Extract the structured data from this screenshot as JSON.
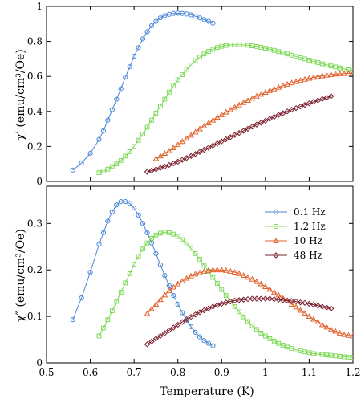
{
  "chart_data": [
    {
      "type": "line",
      "panel": "top",
      "ylabel": "χ′ (emu/cm³/Oe)",
      "xlim": [
        0.5,
        1.2
      ],
      "ylim": [
        0,
        1
      ],
      "xticks": [
        "0.5",
        "0.6",
        "0.7",
        "0.8",
        "0.9",
        "1",
        "1.1",
        "1.2"
      ],
      "yticks": [
        "0",
        "0.2",
        "0.4",
        "0.6",
        "0.8",
        "1"
      ],
      "series": [
        {
          "name": "0.1 Hz",
          "color": "#4a86d6",
          "marker": "circle",
          "x": [
            0.56,
            0.58,
            0.6,
            0.62,
            0.63,
            0.64,
            0.65,
            0.66,
            0.67,
            0.68,
            0.69,
            0.7,
            0.71,
            0.72,
            0.73,
            0.74,
            0.75,
            0.76,
            0.77,
            0.78,
            0.79,
            0.8,
            0.81,
            0.82,
            0.83,
            0.84,
            0.85,
            0.86,
            0.87,
            0.88
          ],
          "y": [
            0.065,
            0.105,
            0.16,
            0.24,
            0.29,
            0.35,
            0.41,
            0.47,
            0.53,
            0.595,
            0.655,
            0.715,
            0.765,
            0.815,
            0.855,
            0.89,
            0.915,
            0.935,
            0.948,
            0.955,
            0.96,
            0.962,
            0.96,
            0.957,
            0.952,
            0.944,
            0.935,
            0.925,
            0.915,
            0.905
          ]
        },
        {
          "name": "1.2 Hz",
          "color": "#7ed957",
          "marker": "square",
          "x": [
            0.62,
            0.63,
            0.64,
            0.65,
            0.66,
            0.67,
            0.68,
            0.69,
            0.7,
            0.71,
            0.72,
            0.73,
            0.74,
            0.75,
            0.76,
            0.77,
            0.78,
            0.79,
            0.8,
            0.81,
            0.82,
            0.83,
            0.84,
            0.85,
            0.86,
            0.87,
            0.88,
            0.89,
            0.9,
            0.91,
            0.92,
            0.93,
            0.94,
            0.95,
            0.96,
            0.97,
            0.98,
            0.99,
            1.0,
            1.01,
            1.02,
            1.03,
            1.04,
            1.05,
            1.06,
            1.07,
            1.08,
            1.09,
            1.1,
            1.11,
            1.12,
            1.13,
            1.14,
            1.15,
            1.16,
            1.17,
            1.18,
            1.19,
            1.2
          ],
          "y": [
            0.05,
            0.06,
            0.07,
            0.085,
            0.1,
            0.12,
            0.145,
            0.17,
            0.2,
            0.235,
            0.27,
            0.31,
            0.35,
            0.39,
            0.43,
            0.47,
            0.51,
            0.545,
            0.58,
            0.61,
            0.64,
            0.665,
            0.69,
            0.71,
            0.728,
            0.743,
            0.755,
            0.765,
            0.772,
            0.777,
            0.78,
            0.781,
            0.781,
            0.78,
            0.778,
            0.775,
            0.771,
            0.766,
            0.761,
            0.755,
            0.749,
            0.742,
            0.735,
            0.728,
            0.721,
            0.714,
            0.707,
            0.7,
            0.693,
            0.686,
            0.679,
            0.672,
            0.666,
            0.66,
            0.654,
            0.648,
            0.643,
            0.638,
            0.633
          ]
        },
        {
          "name": "10 Hz",
          "color": "#e0622b",
          "marker": "triangle",
          "x": [
            0.75,
            0.76,
            0.77,
            0.78,
            0.79,
            0.8,
            0.81,
            0.82,
            0.83,
            0.84,
            0.85,
            0.86,
            0.87,
            0.88,
            0.89,
            0.9,
            0.91,
            0.92,
            0.93,
            0.94,
            0.95,
            0.96,
            0.97,
            0.98,
            0.99,
            1.0,
            1.01,
            1.02,
            1.03,
            1.04,
            1.05,
            1.06,
            1.07,
            1.08,
            1.09,
            1.1,
            1.11,
            1.12,
            1.13,
            1.14,
            1.15,
            1.16,
            1.17,
            1.18,
            1.19,
            1.2
          ],
          "y": [
            0.13,
            0.145,
            0.16,
            0.175,
            0.192,
            0.21,
            0.228,
            0.246,
            0.264,
            0.282,
            0.3,
            0.317,
            0.334,
            0.35,
            0.366,
            0.381,
            0.396,
            0.41,
            0.424,
            0.437,
            0.45,
            0.463,
            0.475,
            0.487,
            0.498,
            0.509,
            0.519,
            0.529,
            0.538,
            0.547,
            0.555,
            0.563,
            0.57,
            0.577,
            0.583,
            0.589,
            0.594,
            0.599,
            0.603,
            0.607,
            0.61,
            0.613,
            0.615,
            0.616,
            0.617,
            0.617
          ]
        },
        {
          "name": "48 Hz",
          "color": "#7b1f2e",
          "marker": "diamond",
          "x": [
            0.73,
            0.74,
            0.75,
            0.76,
            0.77,
            0.78,
            0.79,
            0.8,
            0.81,
            0.82,
            0.83,
            0.84,
            0.85,
            0.86,
            0.87,
            0.88,
            0.89,
            0.9,
            0.91,
            0.92,
            0.93,
            0.94,
            0.95,
            0.96,
            0.97,
            0.98,
            0.99,
            1.0,
            1.01,
            1.02,
            1.03,
            1.04,
            1.05,
            1.06,
            1.07,
            1.08,
            1.09,
            1.1,
            1.11,
            1.12,
            1.13,
            1.14,
            1.15
          ],
          "y": [
            0.055,
            0.062,
            0.069,
            0.077,
            0.085,
            0.094,
            0.103,
            0.113,
            0.123,
            0.134,
            0.145,
            0.157,
            0.169,
            0.181,
            0.193,
            0.205,
            0.217,
            0.229,
            0.241,
            0.253,
            0.265,
            0.277,
            0.289,
            0.301,
            0.313,
            0.325,
            0.336,
            0.347,
            0.358,
            0.369,
            0.38,
            0.39,
            0.4,
            0.41,
            0.419,
            0.428,
            0.437,
            0.446,
            0.455,
            0.463,
            0.471,
            0.479,
            0.487
          ]
        }
      ]
    },
    {
      "type": "line",
      "panel": "bottom",
      "ylabel": "χ″ (emu/cm³/Oe)",
      "xlabel": "Temperature (K)",
      "xlim": [
        0.5,
        1.2
      ],
      "ylim": [
        0,
        0.38
      ],
      "xticks": [
        "0.5",
        "0.6",
        "0.7",
        "0.8",
        "0.9",
        "1",
        "1.1",
        "1.2"
      ],
      "yticks": [
        "0",
        "0.1",
        "0.2",
        "0.3"
      ],
      "legend": "top-right",
      "series": [
        {
          "name": "0.1 Hz",
          "color": "#4a86d6",
          "marker": "circle",
          "x": [
            0.56,
            0.58,
            0.6,
            0.62,
            0.63,
            0.64,
            0.65,
            0.66,
            0.67,
            0.68,
            0.69,
            0.7,
            0.71,
            0.72,
            0.73,
            0.74,
            0.75,
            0.76,
            0.77,
            0.78,
            0.79,
            0.8,
            0.81,
            0.82,
            0.83,
            0.84,
            0.85,
            0.86,
            0.87,
            0.88
          ],
          "y": [
            0.093,
            0.14,
            0.195,
            0.255,
            0.28,
            0.305,
            0.325,
            0.34,
            0.347,
            0.347,
            0.343,
            0.333,
            0.318,
            0.3,
            0.28,
            0.258,
            0.235,
            0.211,
            0.188,
            0.166,
            0.145,
            0.126,
            0.108,
            0.092,
            0.078,
            0.066,
            0.056,
            0.048,
            0.042,
            0.037
          ]
        },
        {
          "name": "1.2 Hz",
          "color": "#7ed957",
          "marker": "square",
          "x": [
            0.62,
            0.63,
            0.64,
            0.65,
            0.66,
            0.67,
            0.68,
            0.69,
            0.7,
            0.71,
            0.72,
            0.73,
            0.74,
            0.75,
            0.76,
            0.77,
            0.78,
            0.79,
            0.8,
            0.81,
            0.82,
            0.83,
            0.84,
            0.85,
            0.86,
            0.87,
            0.88,
            0.89,
            0.9,
            0.91,
            0.92,
            0.93,
            0.94,
            0.95,
            0.96,
            0.97,
            0.98,
            0.99,
            1.0,
            1.01,
            1.02,
            1.03,
            1.04,
            1.05,
            1.06,
            1.07,
            1.08,
            1.09,
            1.1,
            1.11,
            1.12,
            1.13,
            1.14,
            1.15,
            1.16,
            1.17,
            1.18,
            1.19,
            1.2
          ],
          "y": [
            0.058,
            0.075,
            0.093,
            0.112,
            0.132,
            0.152,
            0.172,
            0.192,
            0.212,
            0.23,
            0.245,
            0.258,
            0.268,
            0.275,
            0.279,
            0.281,
            0.28,
            0.277,
            0.272,
            0.265,
            0.256,
            0.246,
            0.235,
            0.223,
            0.21,
            0.197,
            0.184,
            0.171,
            0.158,
            0.145,
            0.133,
            0.121,
            0.11,
            0.099,
            0.089,
            0.08,
            0.072,
            0.064,
            0.058,
            0.052,
            0.047,
            0.042,
            0.038,
            0.034,
            0.031,
            0.028,
            0.026,
            0.024,
            0.022,
            0.02,
            0.019,
            0.018,
            0.017,
            0.016,
            0.015,
            0.014,
            0.013,
            0.012,
            0.012
          ]
        },
        {
          "name": "10 Hz",
          "color": "#e0622b",
          "marker": "triangle",
          "x": [
            0.73,
            0.74,
            0.75,
            0.76,
            0.77,
            0.78,
            0.79,
            0.8,
            0.81,
            0.82,
            0.83,
            0.84,
            0.85,
            0.86,
            0.87,
            0.88,
            0.89,
            0.9,
            0.91,
            0.92,
            0.93,
            0.94,
            0.95,
            0.96,
            0.97,
            0.98,
            0.99,
            1.0,
            1.01,
            1.02,
            1.03,
            1.04,
            1.05,
            1.06,
            1.07,
            1.08,
            1.09,
            1.1,
            1.11,
            1.12,
            1.13,
            1.14,
            1.15,
            1.16,
            1.17,
            1.18,
            1.19,
            1.2
          ],
          "y": [
            0.106,
            0.116,
            0.126,
            0.136,
            0.146,
            0.155,
            0.163,
            0.17,
            0.176,
            0.182,
            0.187,
            0.191,
            0.194,
            0.197,
            0.199,
            0.2,
            0.2,
            0.2,
            0.199,
            0.197,
            0.195,
            0.192,
            0.188,
            0.184,
            0.18,
            0.175,
            0.17,
            0.164,
            0.158,
            0.152,
            0.146,
            0.139,
            0.133,
            0.126,
            0.12,
            0.113,
            0.107,
            0.1,
            0.094,
            0.088,
            0.082,
            0.077,
            0.072,
            0.068,
            0.064,
            0.061,
            0.059,
            0.058
          ]
        },
        {
          "name": "48 Hz",
          "color": "#7b1f2e",
          "marker": "diamond",
          "x": [
            0.73,
            0.74,
            0.75,
            0.76,
            0.77,
            0.78,
            0.79,
            0.8,
            0.81,
            0.82,
            0.83,
            0.84,
            0.85,
            0.86,
            0.87,
            0.88,
            0.89,
            0.9,
            0.91,
            0.92,
            0.93,
            0.94,
            0.95,
            0.96,
            0.97,
            0.98,
            0.99,
            1.0,
            1.01,
            1.02,
            1.03,
            1.04,
            1.05,
            1.06,
            1.07,
            1.08,
            1.09,
            1.1,
            1.11,
            1.12,
            1.13,
            1.14,
            1.15
          ],
          "y": [
            0.04,
            0.046,
            0.052,
            0.058,
            0.064,
            0.07,
            0.076,
            0.082,
            0.088,
            0.094,
            0.099,
            0.104,
            0.109,
            0.113,
            0.117,
            0.121,
            0.124,
            0.127,
            0.13,
            0.132,
            0.134,
            0.135,
            0.136,
            0.137,
            0.138,
            0.138,
            0.138,
            0.138,
            0.138,
            0.137,
            0.136,
            0.135,
            0.134,
            0.133,
            0.132,
            0.13,
            0.129,
            0.127,
            0.125,
            0.123,
            0.121,
            0.119,
            0.117
          ]
        }
      ]
    }
  ]
}
